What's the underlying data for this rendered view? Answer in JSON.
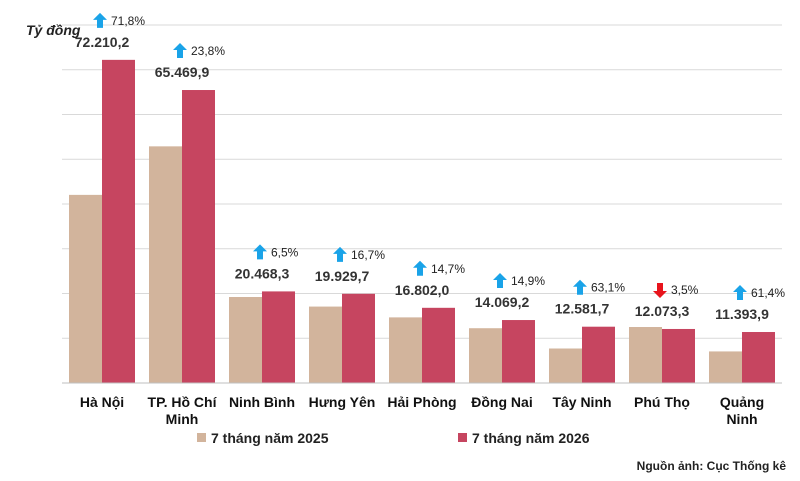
{
  "chart_data": {
    "type": "bar",
    "unit_label": "Tỷ đồng",
    "categories": [
      "Hà Nội",
      "TP. Hồ Chí Minh",
      "Ninh Bình",
      "Hưng Yên",
      "Hải Phòng",
      "Đồng Nai",
      "Tây Ninh",
      "Phú Thọ",
      "Quảng Ninh"
    ],
    "series": [
      {
        "name": "7 tháng năm 2025",
        "color": "#d2b49c",
        "values": [
          42040,
          52885,
          19218,
          17078,
          14664,
          12244,
          7710,
          12511,
          7057
        ]
      },
      {
        "name": "7 tháng năm 2026",
        "color": "#c64560",
        "values": [
          72210.2,
          65469.9,
          20468.3,
          19929.7,
          16802.0,
          14069.2,
          12581.7,
          12073.3,
          11393.9
        ]
      }
    ],
    "value_labels": [
      "72.210,2",
      "65.469,9",
      "20.468,3",
      "19.929,7",
      "16.802,0",
      "14.069,2",
      "12.581,7",
      "12.073,3",
      "11.393,9"
    ],
    "change_labels": [
      "71,8%",
      "23,8%",
      "6,5%",
      "16,7%",
      "14,7%",
      "14,9%",
      "63,1%",
      "3,5%",
      "61,4%"
    ],
    "change_direction": [
      "up",
      "up",
      "up",
      "up",
      "up",
      "up",
      "up",
      "down",
      "up"
    ],
    "arrow_colors": {
      "up": "#1aa3e8",
      "down": "#e8141c"
    },
    "ylim": [
      0,
      80000
    ],
    "grid": true,
    "legend_position": "bottom",
    "source": "Nguồn ảnh: Cục Thống kê"
  }
}
